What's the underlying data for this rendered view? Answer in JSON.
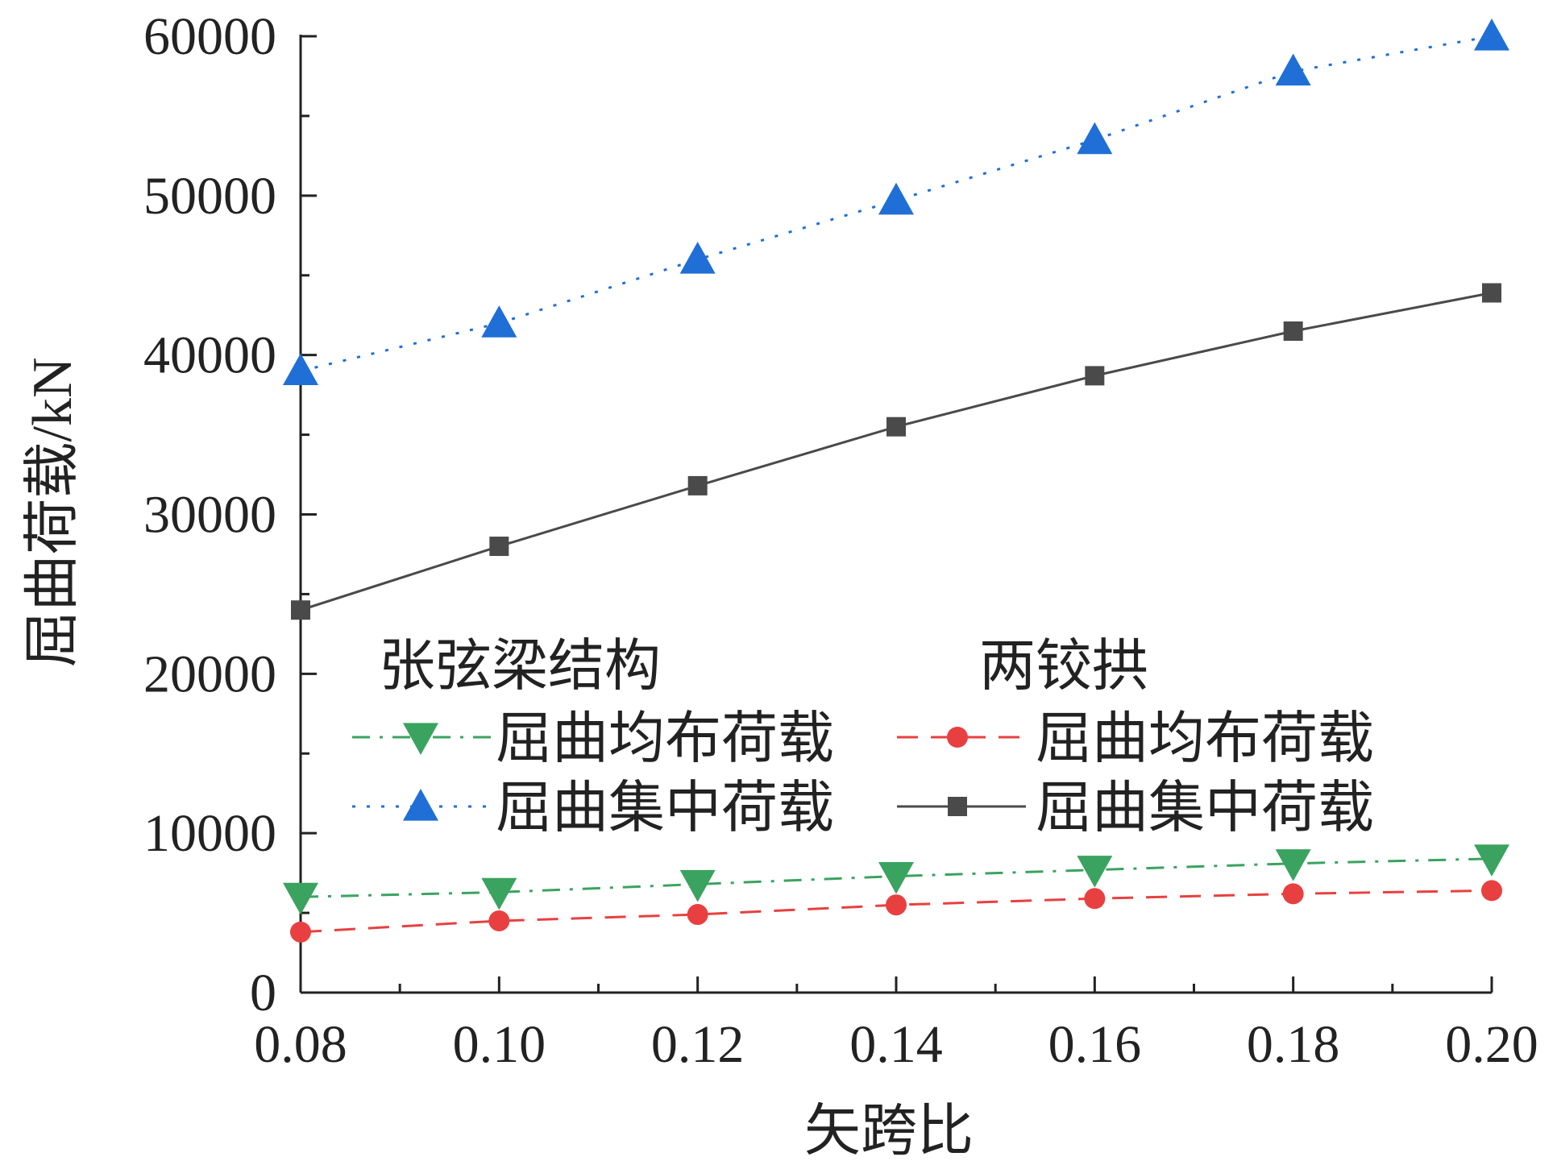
{
  "chart_data": {
    "type": "line",
    "title": "",
    "xlabel": "矢跨比",
    "ylabel": "屈曲荷载/kN",
    "x": [
      0.08,
      0.1,
      0.12,
      0.14,
      0.16,
      0.18,
      0.2
    ],
    "x_tick_labels": [
      "0.08",
      "0.10",
      "0.12",
      "0.14",
      "0.16",
      "0.18",
      "0.20"
    ],
    "y_tick_labels": [
      "0",
      "10000",
      "20000",
      "30000",
      "40000",
      "50000",
      "60000"
    ],
    "xlim": [
      0.08,
      0.2
    ],
    "ylim": [
      0,
      60000
    ],
    "grid": false,
    "legend_position": "middle",
    "legend_groups": [
      {
        "title": "张弦梁结构",
        "series_indices": [
          0,
          1
        ]
      },
      {
        "title": "两铰拱",
        "series_indices": [
          2,
          3
        ]
      }
    ],
    "series": [
      {
        "name": "屈曲均布荷载",
        "group": "张弦梁结构",
        "color": "#3aa35f",
        "marker": "triangle-down",
        "line_style": "dash-dot",
        "values": [
          6000,
          6300,
          6800,
          7300,
          7700,
          8100,
          8400
        ]
      },
      {
        "name": "屈曲集中荷载",
        "group": "张弦梁结构",
        "color": "#1f6fd6",
        "marker": "triangle-up",
        "line_style": "dotted",
        "values": [
          39000,
          42000,
          46000,
          49700,
          53500,
          57800,
          60000
        ]
      },
      {
        "name": "屈曲均布荷载",
        "group": "两铰拱",
        "color": "#e84040",
        "marker": "circle",
        "line_style": "dashed",
        "values": [
          3800,
          4500,
          4900,
          5500,
          5900,
          6200,
          6400
        ]
      },
      {
        "name": "屈曲集中荷载",
        "group": "两铰拱",
        "color": "#4a4a4a",
        "marker": "square",
        "line_style": "solid",
        "values": [
          24000,
          28000,
          31800,
          35500,
          38700,
          41500,
          43900
        ]
      }
    ]
  }
}
